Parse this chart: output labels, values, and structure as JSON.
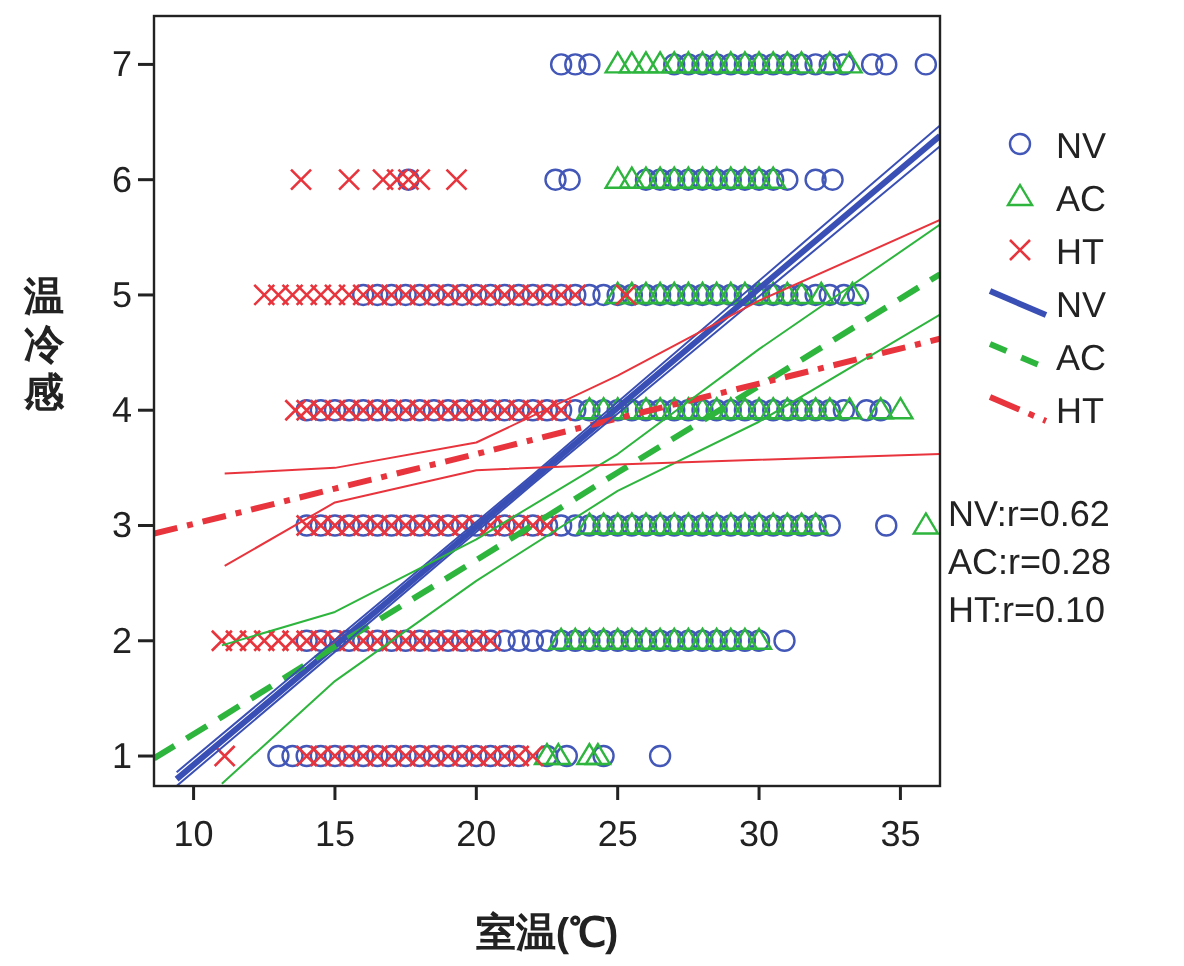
{
  "chart_data": {
    "type": "scatter",
    "xlabel": "室温(℃)",
    "ylabel": "温冷感",
    "xlim": [
      8.6,
      36.4
    ],
    "ylim": [
      0.74,
      7.42
    ],
    "xticks": [
      10,
      15,
      20,
      25,
      30,
      35
    ],
    "yticks": [
      1,
      2,
      3,
      4,
      5,
      6,
      7
    ],
    "grid": false,
    "legend": "right",
    "annotations": [
      "NV:r=0.62",
      "AC:r=0.28",
      "HT:r=0.10"
    ],
    "series": [
      {
        "name": "NV",
        "marker": "circle",
        "color": "#4257b8",
        "x": [
          23,
          23.5,
          24,
          27,
          27.5,
          28,
          28.5,
          29,
          29.5,
          30,
          30.5,
          31,
          31.5,
          32,
          32.5,
          33,
          34,
          34.5,
          35.9,
          17.6,
          22.8,
          23.3,
          26,
          26.5,
          27,
          27.5,
          28,
          28.5,
          29,
          29.5,
          30,
          30.5,
          31,
          32,
          32.6,
          16,
          16.5,
          17,
          17.5,
          18,
          18.5,
          19,
          19.5,
          20,
          20.5,
          21,
          21.5,
          22,
          22.5,
          23,
          23.5,
          24,
          24.5,
          25,
          25.5,
          26,
          26.5,
          27,
          27.5,
          28,
          28.5,
          29,
          29.5,
          30,
          30.5,
          31,
          31.5,
          32,
          32.5,
          33,
          33.5,
          14,
          14.5,
          15,
          15.5,
          16,
          16.5,
          17,
          17.5,
          18,
          18.5,
          19,
          19.5,
          20,
          20.5,
          21,
          21.5,
          22,
          22.5,
          23,
          23.5,
          24,
          24.5,
          25,
          25.5,
          26,
          26.5,
          27,
          27.5,
          28,
          28.5,
          29,
          29.5,
          30,
          30.5,
          31,
          31.5,
          32,
          32.5,
          33,
          33.8,
          34.3,
          14,
          14.5,
          15,
          15.5,
          16,
          16.5,
          17,
          17.5,
          18,
          18.5,
          19,
          19.5,
          20,
          20.5,
          21,
          21.5,
          22,
          22.5,
          23,
          23.5,
          24,
          24.5,
          25,
          25.5,
          26,
          26.5,
          27,
          27.5,
          28,
          28.5,
          29,
          29.5,
          30,
          30.5,
          31,
          31.5,
          32,
          32.5,
          34.5,
          14,
          14.5,
          15,
          15.5,
          16,
          16.5,
          17,
          17.5,
          18,
          18.5,
          19,
          19.5,
          20,
          20.5,
          21,
          21.5,
          22,
          22.5,
          23,
          23.5,
          24,
          24.5,
          25,
          25.5,
          26,
          26.5,
          27,
          27.5,
          28,
          28.5,
          29,
          29.5,
          30,
          30.9,
          13,
          13.5,
          14,
          14.5,
          15,
          15.5,
          16,
          16.5,
          17,
          17.5,
          18,
          18.5,
          19,
          19.5,
          20,
          20.5,
          21,
          21.5,
          22.5,
          23.2,
          24.5,
          26.5
        ],
        "values": [
          7,
          7,
          7,
          7,
          7,
          7,
          7,
          7,
          7,
          7,
          7,
          7,
          7,
          7,
          7,
          7,
          7,
          7,
          7,
          6,
          6,
          6,
          6,
          6,
          6,
          6,
          6,
          6,
          6,
          6,
          6,
          6,
          6,
          6,
          6,
          5,
          5,
          5,
          5,
          5,
          5,
          5,
          5,
          5,
          5,
          5,
          5,
          5,
          5,
          5,
          5,
          5,
          5,
          5,
          5,
          5,
          5,
          5,
          5,
          5,
          5,
          5,
          5,
          5,
          5,
          5,
          5,
          5,
          5,
          5,
          5,
          4,
          4,
          4,
          4,
          4,
          4,
          4,
          4,
          4,
          4,
          4,
          4,
          4,
          4,
          4,
          4,
          4,
          4,
          4,
          4,
          4,
          4,
          4,
          4,
          4,
          4,
          4,
          4,
          4,
          4,
          4,
          4,
          4,
          4,
          4,
          4,
          4,
          4,
          4,
          4,
          4,
          3,
          3,
          3,
          3,
          3,
          3,
          3,
          3,
          3,
          3,
          3,
          3,
          3,
          3,
          3,
          3,
          3,
          3,
          3,
          3,
          3,
          3,
          3,
          3,
          3,
          3,
          3,
          3,
          3,
          3,
          3,
          3,
          3,
          3,
          3,
          3,
          3,
          3,
          3,
          2,
          2,
          2,
          2,
          2,
          2,
          2,
          2,
          2,
          2,
          2,
          2,
          2,
          2,
          2,
          2,
          2,
          2,
          2,
          2,
          2,
          2,
          2,
          2,
          2,
          2,
          2,
          2,
          2,
          2,
          2,
          2,
          2,
          2,
          1,
          1,
          1,
          1,
          1,
          1,
          1,
          1,
          1,
          1,
          1,
          1,
          1,
          1,
          1,
          1,
          1,
          1,
          1,
          1,
          1,
          1
        ]
      },
      {
        "name": "AC",
        "marker": "triangle",
        "color": "#2db53d",
        "x": [
          25,
          25.5,
          26,
          26.5,
          27,
          27.5,
          28,
          28.5,
          29,
          29.5,
          30,
          30.5,
          31,
          31.5,
          32.5,
          33.2,
          25,
          25.5,
          26,
          26.5,
          27,
          27.5,
          28,
          28.5,
          29,
          29.5,
          30,
          30.5,
          25,
          25.5,
          26,
          26.5,
          27,
          27.5,
          28,
          28.5,
          29,
          29.5,
          30,
          30.5,
          31,
          31.5,
          32.2,
          33.3,
          24,
          24.5,
          25,
          25.5,
          26,
          26.5,
          27,
          27.5,
          28,
          28.5,
          29,
          29.5,
          30,
          30.5,
          31,
          31.5,
          32,
          32.5,
          33.2,
          34.3,
          35,
          24,
          24.5,
          25,
          25.5,
          26,
          26.5,
          27,
          27.5,
          28,
          28.5,
          29,
          29.5,
          30,
          30.5,
          31,
          31.5,
          32,
          35.9,
          23,
          23.5,
          24,
          24.5,
          25,
          25.5,
          26,
          26.5,
          27,
          27.5,
          28,
          28.5,
          29,
          29.5,
          30,
          22.5,
          22.9,
          24,
          24.3
        ],
        "values": [
          7,
          7,
          7,
          7,
          7,
          7,
          7,
          7,
          7,
          7,
          7,
          7,
          7,
          7,
          7,
          7,
          6,
          6,
          6,
          6,
          6,
          6,
          6,
          6,
          6,
          6,
          6,
          6,
          5,
          5,
          5,
          5,
          5,
          5,
          5,
          5,
          5,
          5,
          5,
          5,
          5,
          5,
          5,
          5,
          4,
          4,
          4,
          4,
          4,
          4,
          4,
          4,
          4,
          4,
          4,
          4,
          4,
          4,
          4,
          4,
          4,
          4,
          4,
          4,
          4,
          3,
          3,
          3,
          3,
          3,
          3,
          3,
          3,
          3,
          3,
          3,
          3,
          3,
          3,
          3,
          3,
          3,
          3,
          2,
          2,
          2,
          2,
          2,
          2,
          2,
          2,
          2,
          2,
          2,
          2,
          2,
          2,
          2,
          1,
          1,
          1,
          1
        ]
      },
      {
        "name": "HT",
        "marker": "cross",
        "color": "#e8343c",
        "x": [
          13.8,
          15.5,
          16.7,
          17.2,
          17.6,
          18,
          19.3,
          12.5,
          13,
          13.5,
          14,
          14.5,
          15,
          15.5,
          16,
          16.5,
          17,
          17.5,
          18,
          18.5,
          19,
          19.5,
          20,
          20.5,
          21,
          21.5,
          22,
          22.5,
          23,
          23.5,
          25.3,
          13.6,
          14,
          14.5,
          15,
          15.5,
          16,
          16.5,
          17,
          17.5,
          18,
          18.5,
          19,
          19.5,
          20,
          20.5,
          21,
          21.5,
          22,
          22.5,
          23,
          14,
          14.5,
          15,
          15.5,
          16,
          16.5,
          17,
          17.5,
          18,
          18.5,
          19,
          19.5,
          20,
          20.5,
          21,
          21.5,
          22,
          22.5,
          11,
          11.5,
          12,
          12.5,
          13,
          13.5,
          14,
          14.5,
          15,
          15.5,
          16,
          16.5,
          17,
          17.5,
          18,
          18.5,
          19,
          19.5,
          20,
          20.5,
          11.1,
          14,
          14.5,
          15,
          15.5,
          16,
          16.5,
          17,
          17.5,
          18,
          18.5,
          19,
          19.5,
          20,
          20.5,
          21,
          21.5,
          22
        ],
        "values": [
          6,
          6,
          6,
          6,
          6,
          6,
          6,
          5,
          5,
          5,
          5,
          5,
          5,
          5,
          5,
          5,
          5,
          5,
          5,
          5,
          5,
          5,
          5,
          5,
          5,
          5,
          5,
          5,
          5,
          5,
          5,
          4,
          4,
          4,
          4,
          4,
          4,
          4,
          4,
          4,
          4,
          4,
          4,
          4,
          4,
          4,
          4,
          4,
          4,
          4,
          4,
          3,
          3,
          3,
          3,
          3,
          3,
          3,
          3,
          3,
          3,
          3,
          3,
          3,
          3,
          3,
          3,
          3,
          3,
          2,
          2,
          2,
          2,
          2,
          2,
          2,
          2,
          2,
          2,
          2,
          2,
          2,
          2,
          2,
          2,
          2,
          2,
          2,
          2,
          1,
          1,
          1,
          1,
          1,
          1,
          1,
          1,
          1,
          1,
          1,
          1,
          1,
          1,
          1,
          1,
          1,
          1
        ]
      },
      {
        "name": "NV",
        "type": "line",
        "marker": "none",
        "line_style": "solid",
        "color": "#3a4fb5",
        "x": [
          9.4,
          22,
          36.4
        ],
        "values": [
          0.8,
          3.4,
          6.38
        ]
      },
      {
        "name": "AC",
        "type": "line",
        "marker": "none",
        "line_style": "dashed",
        "color": "#2db53d",
        "x": [
          8.6,
          11,
          15,
          20,
          25,
          30,
          36.4
        ],
        "values": [
          0.98,
          1.34,
          1.95,
          2.7,
          3.46,
          4.21,
          5.18
        ]
      },
      {
        "name": "HT",
        "type": "line",
        "marker": "none",
        "line_style": "dashdot",
        "color": "#e8343c",
        "x": [
          8.6,
          11.1,
          15,
          20,
          25,
          30,
          36.4
        ],
        "values": [
          2.93,
          3.08,
          3.32,
          3.62,
          3.93,
          4.23,
          4.62
        ]
      },
      {
        "type": "line",
        "marker": "none",
        "line_style": "solid",
        "color": "#3a4fb5",
        "x": [
          9.4,
          22,
          36.4
        ],
        "values": [
          0.86,
          3.44,
          6.47
        ]
      },
      {
        "type": "line",
        "marker": "none",
        "line_style": "solid",
        "color": "#3a4fb5",
        "x": [
          9.4,
          22,
          36.4
        ],
        "values": [
          0.74,
          3.36,
          6.29
        ]
      },
      {
        "type": "line",
        "marker": "none",
        "line_style": "solid",
        "color": "#2db53d",
        "x": [
          11,
          15,
          20,
          25,
          30,
          36.4
        ],
        "values": [
          1.96,
          2.25,
          2.88,
          3.62,
          4.53,
          5.61
        ]
      },
      {
        "type": "line",
        "marker": "none",
        "line_style": "solid",
        "color": "#2db53d",
        "x": [
          11,
          15,
          20,
          25,
          30,
          36.4
        ],
        "values": [
          0.76,
          1.65,
          2.52,
          3.3,
          3.9,
          4.83
        ]
      },
      {
        "type": "line",
        "marker": "none",
        "line_style": "solid",
        "color": "#e8343c",
        "x": [
          11.1,
          15,
          20,
          25,
          30,
          36.4
        ],
        "values": [
          3.45,
          3.5,
          3.72,
          4.3,
          4.95,
          5.65
        ]
      },
      {
        "type": "line",
        "marker": "none",
        "line_style": "solid",
        "color": "#e8343c",
        "x": [
          11.1,
          15,
          20,
          25,
          30,
          36.4
        ],
        "values": [
          2.65,
          3.2,
          3.48,
          3.53,
          3.57,
          3.62
        ]
      }
    ]
  }
}
